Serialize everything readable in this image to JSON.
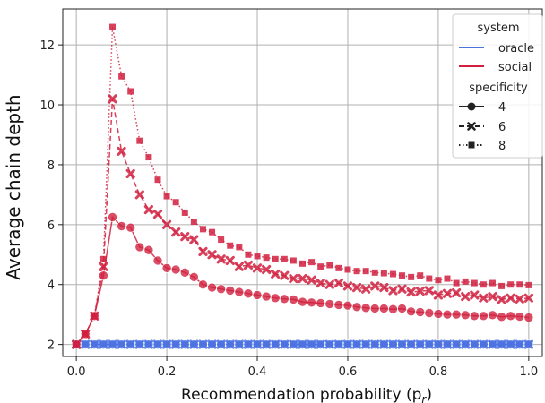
{
  "chart_data": {
    "type": "line",
    "xlabel": "Recommendation probability (p",
    "xlabel_sub": "r",
    "xlabel_close": ")",
    "ylabel": "Average chain depth",
    "xlim": [
      -0.03,
      1.03
    ],
    "ylim": [
      1.6,
      13.2
    ],
    "xticks": [
      0.0,
      0.2,
      0.4,
      0.6,
      0.8,
      1.0
    ],
    "xtick_labels": [
      "0.0",
      "0.2",
      "0.4",
      "0.6",
      "0.8",
      "1.0"
    ],
    "yticks": [
      2,
      4,
      6,
      8,
      10,
      12
    ],
    "ytick_labels": [
      "2",
      "4",
      "6",
      "8",
      "10",
      "12"
    ],
    "grid": true,
    "legend_position": "top-right",
    "colors": {
      "oracle": "#4c72e0",
      "social": "#d1203e"
    },
    "legend": {
      "system_title": "system",
      "system_items": [
        "oracle",
        "social"
      ],
      "specificity_title": "specificity",
      "specificity_items": [
        "4",
        "6",
        "8"
      ]
    },
    "x": [
      0.0,
      0.02,
      0.04,
      0.06,
      0.08,
      0.1,
      0.12,
      0.14,
      0.16,
      0.18,
      0.2,
      0.22,
      0.24,
      0.26,
      0.28,
      0.3,
      0.32,
      0.34,
      0.36,
      0.38,
      0.4,
      0.42,
      0.44,
      0.46,
      0.48,
      0.5,
      0.52,
      0.54,
      0.56,
      0.58,
      0.6,
      0.62,
      0.64,
      0.66,
      0.68,
      0.7,
      0.72,
      0.74,
      0.76,
      0.78,
      0.8,
      0.82,
      0.84,
      0.86,
      0.88,
      0.9,
      0.92,
      0.94,
      0.96,
      0.98,
      1.0
    ],
    "series": [
      {
        "system": "social",
        "specificity": "4",
        "marker": "circle",
        "dash": "solid",
        "values": [
          2.0,
          2.35,
          2.95,
          4.3,
          6.25,
          5.95,
          5.9,
          5.25,
          5.15,
          4.8,
          4.55,
          4.5,
          4.4,
          4.25,
          4.0,
          3.9,
          3.85,
          3.8,
          3.75,
          3.7,
          3.65,
          3.6,
          3.55,
          3.52,
          3.5,
          3.42,
          3.4,
          3.38,
          3.35,
          3.32,
          3.3,
          3.25,
          3.22,
          3.2,
          3.2,
          3.18,
          3.2,
          3.1,
          3.08,
          3.05,
          3.02,
          3.0,
          3.0,
          2.98,
          2.95,
          2.95,
          2.98,
          2.92,
          2.95,
          2.93,
          2.9
        ]
      },
      {
        "system": "social",
        "specificity": "6",
        "marker": "x",
        "dash": "dashed",
        "values": [
          2.0,
          2.35,
          2.95,
          4.6,
          10.2,
          8.45,
          7.7,
          7.0,
          6.5,
          6.35,
          6.0,
          5.75,
          5.6,
          5.5,
          5.1,
          5.0,
          4.85,
          4.8,
          4.6,
          4.65,
          4.55,
          4.5,
          4.35,
          4.3,
          4.2,
          4.2,
          4.15,
          4.05,
          4.0,
          4.05,
          3.95,
          3.9,
          3.85,
          3.95,
          3.9,
          3.8,
          3.85,
          3.75,
          3.78,
          3.8,
          3.65,
          3.7,
          3.72,
          3.6,
          3.65,
          3.55,
          3.6,
          3.5,
          3.55,
          3.52,
          3.55
        ]
      },
      {
        "system": "social",
        "specificity": "8",
        "marker": "square",
        "dash": "dotted",
        "values": [
          2.0,
          2.35,
          2.95,
          4.85,
          12.6,
          10.95,
          10.45,
          8.8,
          8.25,
          7.5,
          6.95,
          6.75,
          6.4,
          6.1,
          5.85,
          5.75,
          5.5,
          5.3,
          5.25,
          5.0,
          4.95,
          4.9,
          4.85,
          4.85,
          4.8,
          4.7,
          4.75,
          4.6,
          4.65,
          4.55,
          4.5,
          4.45,
          4.45,
          4.4,
          4.38,
          4.35,
          4.3,
          4.25,
          4.3,
          4.2,
          4.15,
          4.2,
          4.05,
          4.1,
          4.05,
          4.0,
          4.05,
          3.95,
          4.0,
          4.0,
          3.98
        ]
      },
      {
        "system": "oracle",
        "specificity": "4",
        "marker": "circle",
        "dash": "solid",
        "values": [
          2.0,
          2.0,
          2.0,
          2.0,
          2.0,
          2.0,
          2.0,
          2.0,
          2.0,
          2.0,
          2.0,
          2.0,
          2.0,
          2.0,
          2.0,
          2.0,
          2.0,
          2.0,
          2.0,
          2.0,
          2.0,
          2.0,
          2.0,
          2.0,
          2.0,
          2.0,
          2.0,
          2.0,
          2.0,
          2.0,
          2.0,
          2.0,
          2.0,
          2.0,
          2.0,
          2.0,
          2.0,
          2.0,
          2.0,
          2.0,
          2.0,
          2.0,
          2.0,
          2.0,
          2.0,
          2.0,
          2.0,
          2.0,
          2.0,
          2.0,
          2.0
        ]
      },
      {
        "system": "oracle",
        "specificity": "6",
        "marker": "x",
        "dash": "dashed",
        "values": [
          2.0,
          2.0,
          2.0,
          2.0,
          2.0,
          2.0,
          2.0,
          2.0,
          2.0,
          2.0,
          2.0,
          2.0,
          2.0,
          2.0,
          2.0,
          2.0,
          2.0,
          2.0,
          2.0,
          2.0,
          2.0,
          2.0,
          2.0,
          2.0,
          2.0,
          2.0,
          2.0,
          2.0,
          2.0,
          2.0,
          2.0,
          2.0,
          2.0,
          2.0,
          2.0,
          2.0,
          2.0,
          2.0,
          2.0,
          2.0,
          2.0,
          2.0,
          2.0,
          2.0,
          2.0,
          2.0,
          2.0,
          2.0,
          2.0,
          2.0,
          2.0
        ]
      },
      {
        "system": "oracle",
        "specificity": "8",
        "marker": "square",
        "dash": "dotted",
        "values": [
          2.0,
          2.0,
          2.0,
          2.0,
          2.0,
          2.0,
          2.0,
          2.0,
          2.0,
          2.0,
          2.0,
          2.0,
          2.0,
          2.0,
          2.0,
          2.0,
          2.0,
          2.0,
          2.0,
          2.0,
          2.0,
          2.0,
          2.0,
          2.0,
          2.0,
          2.0,
          2.0,
          2.0,
          2.0,
          2.0,
          2.0,
          2.0,
          2.0,
          2.0,
          2.0,
          2.0,
          2.0,
          2.0,
          2.0,
          2.0,
          2.0,
          2.0,
          2.0,
          2.0,
          2.0,
          2.0,
          2.0,
          2.0,
          2.0,
          2.0,
          2.0
        ]
      }
    ]
  }
}
